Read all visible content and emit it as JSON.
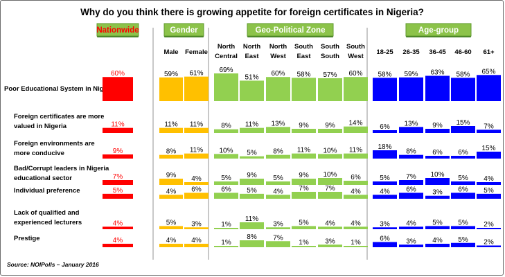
{
  "chart_data": {
    "type": "bar",
    "title": "Why do you think there is growing appetite for foreign certificates in Nigeria?",
    "source": "Source: NOIPolls – January 2016",
    "unit": "%",
    "ylim": [
      0,
      100
    ],
    "groups": [
      {
        "name": "Nationwide",
        "color": "#ff0000",
        "label_color": "#ff0000",
        "header_text_color": "#ff0000",
        "columns": [
          ""
        ]
      },
      {
        "name": "Gender",
        "color": "#ffc000",
        "label_color": "#000000",
        "header_text_color": "#ffffff",
        "columns": [
          "Male",
          "Female"
        ]
      },
      {
        "name": "Geo-Political Zone",
        "color": "#92d050",
        "label_color": "#000000",
        "header_text_color": "#ffffff",
        "columns": [
          "North Central",
          "North East",
          "North West",
          "South East",
          "South South",
          "South West"
        ]
      },
      {
        "name": "Age-group",
        "color": "#0000ff",
        "label_color": "#000000",
        "header_text_color": "#ffffff",
        "columns": [
          "18-25",
          "26-35",
          "36-45",
          "46-60",
          "61+"
        ]
      }
    ],
    "categories": [
      "Poor Educational System in Nigeria",
      "Foreign certificates are more valued in Nigeria",
      "Foreign environments are more conducive",
      "Bad/Corrupt leaders in Nigeria educational sector",
      "Individual preference",
      "Lack of qualified and experienced lecturers",
      "Prestige"
    ],
    "values": [
      [
        60,
        59,
        61,
        69,
        51,
        60,
        58,
        57,
        60,
        58,
        59,
        63,
        58,
        65
      ],
      [
        11,
        11,
        11,
        8,
        11,
        13,
        9,
        9,
        14,
        6,
        13,
        9,
        15,
        7
      ],
      [
        9,
        8,
        11,
        10,
        5,
        8,
        11,
        10,
        11,
        18,
        8,
        6,
        6,
        15
      ],
      [
        7,
        9,
        4,
        5,
        9,
        5,
        9,
        10,
        6,
        5,
        7,
        10,
        5,
        4
      ],
      [
        5,
        4,
        6,
        6,
        5,
        4,
        7,
        7,
        4,
        4,
        6,
        3,
        6,
        5
      ],
      [
        4,
        5,
        3,
        1,
        11,
        3,
        5,
        4,
        4,
        3,
        4,
        5,
        5,
        2
      ],
      [
        4,
        4,
        4,
        1,
        8,
        7,
        1,
        3,
        1,
        6,
        3,
        4,
        5,
        2
      ]
    ]
  }
}
